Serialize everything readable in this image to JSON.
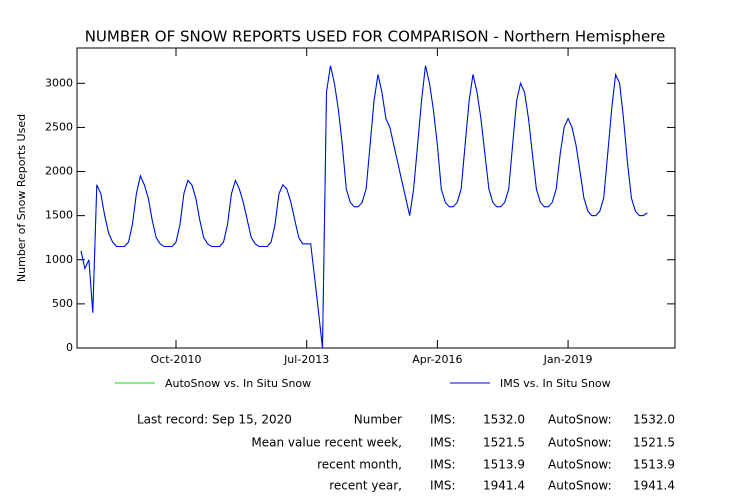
{
  "chart_data": {
    "type": "line",
    "title": "NUMBER OF SNOW REPORTS USED FOR COMPARISON - Northern Hemisphere",
    "y_label": "Number of Snow Reports Used",
    "x": [
      "2008-10",
      "2008-11",
      "2008-12",
      "2009-01",
      "2009-02",
      "2009-03",
      "2009-04",
      "2009-05",
      "2009-06",
      "2009-07",
      "2009-08",
      "2009-09",
      "2009-10",
      "2009-11",
      "2009-12",
      "2010-01",
      "2010-02",
      "2010-03",
      "2010-04",
      "2010-05",
      "2010-06",
      "2010-07",
      "2010-08",
      "2010-09",
      "2010-10",
      "2010-11",
      "2010-12",
      "2011-01",
      "2011-02",
      "2011-03",
      "2011-04",
      "2011-05",
      "2011-06",
      "2011-07",
      "2011-08",
      "2011-09",
      "2011-10",
      "2011-11",
      "2011-12",
      "2012-01",
      "2012-02",
      "2012-03",
      "2012-04",
      "2012-05",
      "2012-06",
      "2012-07",
      "2012-08",
      "2012-09",
      "2012-10",
      "2012-11",
      "2012-12",
      "2013-01",
      "2013-02",
      "2013-03",
      "2013-04",
      "2013-05",
      "2013-06",
      "2013-07",
      "2013-08",
      "2013-09",
      "2013-10",
      "2013-11",
      "2013-12",
      "2014-01",
      "2014-02",
      "2014-03",
      "2014-04",
      "2014-05",
      "2014-06",
      "2014-07",
      "2014-08",
      "2014-09",
      "2014-10",
      "2014-11",
      "2014-12",
      "2015-01",
      "2015-02",
      "2015-03",
      "2015-04",
      "2015-05",
      "2015-06",
      "2015-07",
      "2015-08",
      "2015-09",
      "2015-10",
      "2015-11",
      "2015-12",
      "2016-01",
      "2016-02",
      "2016-03",
      "2016-04",
      "2016-05",
      "2016-06",
      "2016-07",
      "2016-08",
      "2016-09",
      "2016-10",
      "2016-11",
      "2016-12",
      "2017-01",
      "2017-02",
      "2017-03",
      "2017-04",
      "2017-05",
      "2017-06",
      "2017-07",
      "2017-08",
      "2017-09",
      "2017-10",
      "2017-11",
      "2017-12",
      "2018-01",
      "2018-02",
      "2018-03",
      "2018-04",
      "2018-05",
      "2018-06",
      "2018-07",
      "2018-08",
      "2018-09",
      "2018-10",
      "2018-11",
      "2018-12",
      "2019-01",
      "2019-02",
      "2019-03",
      "2019-04",
      "2019-05",
      "2019-06",
      "2019-07",
      "2019-08",
      "2019-09",
      "2019-10",
      "2019-11",
      "2019-12",
      "2020-01",
      "2020-02",
      "2020-03",
      "2020-04",
      "2020-05",
      "2020-06",
      "2020-07",
      "2020-08",
      "2020-09"
    ],
    "series": [
      {
        "name": "AutoSnow vs. In Situ Snow",
        "color": "#00dd00",
        "values": [
          1100,
          900,
          1000,
          400,
          1850,
          1750,
          1500,
          1300,
          1200,
          1150,
          1150,
          1150,
          1200,
          1400,
          1750,
          1950,
          1850,
          1700,
          1450,
          1250,
          1180,
          1150,
          1150,
          1150,
          1200,
          1400,
          1750,
          1900,
          1850,
          1700,
          1450,
          1250,
          1180,
          1150,
          1150,
          1150,
          1200,
          1400,
          1750,
          1900,
          1800,
          1650,
          1450,
          1250,
          1180,
          1150,
          1150,
          1150,
          1200,
          1400,
          1750,
          1850,
          1800,
          1650,
          1450,
          1250,
          1180,
          1180,
          1180,
          800,
          400,
          0,
          2900,
          3200,
          3000,
          2700,
          2300,
          1800,
          1650,
          1600,
          1600,
          1650,
          1800,
          2300,
          2800,
          3100,
          2900,
          2600,
          2500,
          2300,
          2100,
          1900,
          1700,
          1500,
          1800,
          2300,
          2800,
          3200,
          3000,
          2700,
          2300,
          1800,
          1650,
          1600,
          1600,
          1650,
          1800,
          2300,
          2800,
          3100,
          2900,
          2600,
          2200,
          1800,
          1650,
          1600,
          1600,
          1650,
          1800,
          2300,
          2800,
          3000,
          2900,
          2600,
          2200,
          1800,
          1650,
          1600,
          1600,
          1650,
          1800,
          2200,
          2500,
          2600,
          2500,
          2300,
          2000,
          1700,
          1550,
          1500,
          1500,
          1550,
          1700,
          2200,
          2700,
          3100,
          3000,
          2600,
          2100,
          1700,
          1550,
          1500,
          1500,
          1532
        ]
      },
      {
        "name": "IMS vs. In Situ Snow",
        "color": "#0000ff",
        "values": [
          1100,
          900,
          1000,
          400,
          1850,
          1750,
          1500,
          1300,
          1200,
          1150,
          1150,
          1150,
          1200,
          1400,
          1750,
          1950,
          1850,
          1700,
          1450,
          1250,
          1180,
          1150,
          1150,
          1150,
          1200,
          1400,
          1750,
          1900,
          1850,
          1700,
          1450,
          1250,
          1180,
          1150,
          1150,
          1150,
          1200,
          1400,
          1750,
          1900,
          1800,
          1650,
          1450,
          1250,
          1180,
          1150,
          1150,
          1150,
          1200,
          1400,
          1750,
          1850,
          1800,
          1650,
          1450,
          1250,
          1180,
          1180,
          1180,
          800,
          400,
          0,
          2900,
          3200,
          3000,
          2700,
          2300,
          1800,
          1650,
          1600,
          1600,
          1650,
          1800,
          2300,
          2800,
          3100,
          2900,
          2600,
          2500,
          2300,
          2100,
          1900,
          1700,
          1500,
          1800,
          2300,
          2800,
          3200,
          3000,
          2700,
          2300,
          1800,
          1650,
          1600,
          1600,
          1650,
          1800,
          2300,
          2800,
          3100,
          2900,
          2600,
          2200,
          1800,
          1650,
          1600,
          1600,
          1650,
          1800,
          2300,
          2800,
          3000,
          2900,
          2600,
          2200,
          1800,
          1650,
          1600,
          1600,
          1650,
          1800,
          2200,
          2500,
          2600,
          2500,
          2300,
          2000,
          1700,
          1550,
          1500,
          1500,
          1550,
          1700,
          2200,
          2700,
          3100,
          3000,
          2600,
          2100,
          1700,
          1550,
          1500,
          1500,
          1532
        ]
      }
    ],
    "xlim": [
      "2008-09",
      "2021-04"
    ],
    "xticks": [
      {
        "value": "2010-10",
        "label": "Oct-2010"
      },
      {
        "value": "2013-07",
        "label": "Jul-2013"
      },
      {
        "value": "2016-04",
        "label": "Apr-2016"
      },
      {
        "value": "2019-01",
        "label": "Jan-2019"
      }
    ],
    "ylim": [
      0,
      3400
    ],
    "yticks": [
      0,
      500,
      1000,
      1500,
      2000,
      2500,
      3000
    ],
    "footer": [
      [
        "Last record: Sep 15, 2020",
        "Number",
        "IMS:",
        "1532.0",
        "AutoSnow:",
        "1532.0"
      ],
      [
        "Mean value recent week,",
        "IMS:",
        "1521.5",
        "AutoSnow:",
        "1521.5"
      ],
      [
        "recent month,",
        "IMS:",
        "1513.9",
        "AutoSnow:",
        "1513.9"
      ],
      [
        "recent year,",
        "IMS:",
        "1941.4",
        "AutoSnow:",
        "1941.4"
      ]
    ]
  }
}
